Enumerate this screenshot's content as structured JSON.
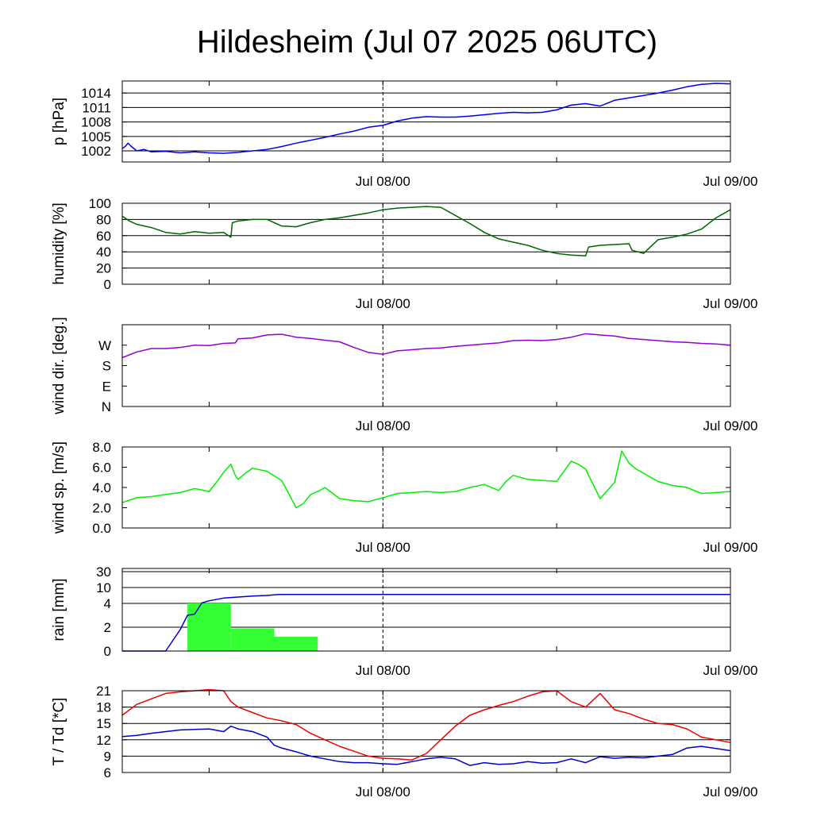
{
  "title": "Hildesheim (Jul 07 2025 06UTC)",
  "colors": {
    "pressure": "#0000ee",
    "humidity": "#006400",
    "wind_dir": "#9400d3",
    "wind_speed": "#00ee00",
    "rain_bar": "#33ff33",
    "rain_accum": "#0000cc",
    "temperature": "#ee0000",
    "dewpoint": "#0000cc",
    "grid": "#000000"
  },
  "chart_data": [
    {
      "type": "line",
      "ylabel": "p [hPa]",
      "x_tick_labels": [
        "Jul 08/00",
        "Jul 09/00"
      ],
      "ylim": [
        999.7,
        1016.5
      ],
      "yticks": [
        1002,
        1005,
        1008,
        1011,
        1014
      ],
      "grid": true,
      "series": [
        {
          "color_key": "pressure",
          "x": [
            0,
            0.2,
            0.4,
            0.6,
            0.8,
            1,
            1.5,
            2,
            3,
            4,
            5,
            6,
            7,
            8,
            9,
            10,
            11,
            12,
            13,
            14,
            15,
            16,
            17,
            18,
            19,
            20,
            21,
            22,
            23,
            24,
            25,
            26,
            27,
            28,
            29,
            30,
            31,
            32,
            33,
            34,
            35,
            36,
            37,
            38,
            39,
            40,
            41,
            42
          ],
          "values": [
            1002.5,
            1002.9,
            1003.6,
            1003.0,
            1002.5,
            1002.0,
            1002.3,
            1001.8,
            1001.9,
            1001.6,
            1001.8,
            1001.6,
            1001.5,
            1001.7,
            1002.0,
            1002.3,
            1002.9,
            1003.6,
            1004.2,
            1004.8,
            1005.5,
            1006.1,
            1006.9,
            1007.3,
            1008.2,
            1008.8,
            1009.1,
            1009.0,
            1009.0,
            1009.2,
            1009.5,
            1009.8,
            1010.0,
            1009.9,
            1010.0,
            1010.5,
            1011.5,
            1011.8,
            1011.3,
            1012.5,
            1013.0,
            1013.5,
            1014.0,
            1014.6,
            1015.3,
            1015.8,
            1016.0,
            1015.9
          ]
        }
      ]
    },
    {
      "type": "line",
      "ylabel": "humidity [%]",
      "x_tick_labels": [
        "Jul 08/00",
        "Jul 09/00"
      ],
      "ylim": [
        0,
        100
      ],
      "yticks": [
        0,
        20,
        40,
        60,
        80,
        100
      ],
      "grid": true,
      "series": [
        {
          "color_key": "humidity",
          "x": [
            0,
            0.5,
            1,
            2,
            3,
            4,
            5,
            6,
            7,
            7.5,
            7.6,
            8,
            9,
            10,
            11,
            12,
            13,
            14,
            15,
            16,
            17,
            18,
            19,
            20,
            21,
            22,
            23,
            24,
            25,
            26,
            27,
            28,
            29,
            30,
            31,
            32,
            32.2,
            33,
            34,
            35,
            35.2,
            36,
            37,
            38,
            39,
            40,
            41,
            42
          ],
          "values": [
            84,
            78,
            74,
            70,
            64,
            62,
            65,
            63,
            64,
            58,
            76,
            78,
            80,
            80,
            72,
            71,
            76,
            80,
            82,
            85,
            88,
            92,
            94,
            95,
            96,
            95,
            85,
            75,
            64,
            56,
            52,
            48,
            42,
            38,
            36,
            35,
            46,
            48,
            49,
            50,
            42,
            38,
            55,
            58,
            62,
            68,
            82,
            92
          ]
        }
      ]
    },
    {
      "type": "line",
      "ylabel": "wind dir. [deg.]",
      "x_tick_labels": [
        "Jul 08/00",
        "Jul 09/00"
      ],
      "ylim": [
        0,
        360
      ],
      "yticks": [
        0,
        90,
        180,
        270
      ],
      "ytick_labels": [
        "N",
        "E",
        "S",
        "W"
      ],
      "grid": false,
      "series": [
        {
          "color_key": "wind_dir",
          "x": [
            0,
            1,
            2,
            3,
            4,
            5,
            6,
            7,
            7.8,
            8,
            9,
            10,
            11,
            12,
            13,
            14,
            15,
            16,
            17,
            18,
            19,
            20,
            21,
            22,
            23,
            24,
            25,
            26,
            27,
            28,
            29,
            30,
            31,
            32,
            33,
            34,
            35,
            36,
            37,
            38,
            39,
            40,
            41,
            42
          ],
          "values": [
            215,
            240,
            255,
            255,
            260,
            270,
            268,
            278,
            280,
            298,
            302,
            315,
            318,
            305,
            300,
            292,
            285,
            260,
            238,
            230,
            245,
            250,
            255,
            258,
            265,
            270,
            275,
            280,
            290,
            292,
            290,
            295,
            305,
            320,
            315,
            310,
            300,
            295,
            290,
            285,
            282,
            278,
            275,
            270
          ]
        }
      ]
    },
    {
      "type": "line",
      "ylabel": "wind sp. [m/s]",
      "x_tick_labels": [
        "Jul 08/00",
        "Jul 09/00"
      ],
      "ylim": [
        0,
        8
      ],
      "yticks": [
        0.0,
        2.0,
        4.0,
        6.0,
        8.0
      ],
      "ytick_labels": [
        "0.0",
        "2.0",
        "4.0",
        "6.0",
        "8.0"
      ],
      "grid": false,
      "series": [
        {
          "color_key": "wind_speed",
          "x": [
            0,
            1,
            2,
            3,
            4,
            5,
            6,
            6.5,
            7,
            7.5,
            7.8,
            8,
            8.5,
            9,
            10,
            11,
            11.5,
            12,
            12.5,
            13,
            13.5,
            14,
            15,
            16,
            17,
            18,
            19,
            20,
            21,
            22,
            23,
            24,
            25,
            26,
            26.5,
            27,
            28,
            29,
            30,
            31,
            31.5,
            32,
            33,
            34,
            34.5,
            35,
            35.5,
            36,
            36.5,
            37,
            38,
            39,
            40,
            41,
            42
          ],
          "values": [
            2.5,
            3.0,
            3.1,
            3.3,
            3.5,
            3.9,
            3.6,
            4.5,
            5.5,
            6.3,
            5.2,
            4.8,
            5.4,
            5.9,
            5.6,
            4.7,
            3.4,
            2.0,
            2.4,
            3.3,
            3.6,
            4.0,
            2.9,
            2.7,
            2.6,
            3.0,
            3.4,
            3.5,
            3.6,
            3.5,
            3.6,
            4.0,
            4.3,
            3.7,
            4.6,
            5.2,
            4.8,
            4.7,
            4.6,
            6.6,
            6.3,
            5.8,
            2.9,
            4.5,
            7.6,
            6.4,
            5.8,
            5.4,
            5.0,
            4.6,
            4.2,
            4.0,
            3.4,
            3.5,
            3.6
          ]
        }
      ]
    },
    {
      "type": "bar",
      "ylabel": "rain [mm]",
      "x_tick_labels": [
        "Jul 08/00",
        "Jul 09/00"
      ],
      "yticks": [
        0,
        2,
        4,
        10,
        30
      ],
      "ytick_labels": [
        "0",
        "2",
        "4",
        "10",
        "30"
      ],
      "scale": "nonlinear",
      "grid": true,
      "bars": [
        {
          "x0": 4.5,
          "x1": 7.5,
          "value": 4.0
        },
        {
          "x0": 7.5,
          "x1": 10.5,
          "value": 1.9
        },
        {
          "x0": 10.5,
          "x1": 13.5,
          "value": 1.2
        }
      ],
      "accumulation": {
        "color_key": "rain_accum",
        "x": [
          0,
          3,
          4,
          4.5,
          5,
          5.5,
          6,
          7,
          8,
          9,
          10,
          10.6,
          11,
          42
        ],
        "values": [
          0,
          0,
          1.8,
          3.0,
          3.1,
          4.2,
          5.0,
          6.0,
          6.4,
          6.8,
          7.0,
          7.3,
          7.4,
          7.4
        ]
      }
    },
    {
      "type": "line",
      "ylabel": "T / Td [*C]",
      "x_tick_labels": [
        "Jul 08/00",
        "Jul 09/00"
      ],
      "ylim": [
        6,
        21
      ],
      "yticks": [
        6,
        9,
        12,
        15,
        18,
        21
      ],
      "grid": true,
      "series": [
        {
          "color_key": "temperature",
          "x": [
            0,
            1,
            2,
            3,
            4,
            5,
            6,
            7,
            7.5,
            8,
            9,
            10,
            11,
            12,
            13,
            14,
            15,
            16,
            17,
            18,
            19,
            20,
            21,
            22,
            23,
            24,
            25,
            26,
            27,
            28,
            29,
            30,
            31,
            32,
            33,
            34,
            35,
            36,
            37,
            38,
            39,
            40,
            41,
            42
          ],
          "values": [
            16.5,
            18.5,
            19.5,
            20.5,
            20.8,
            21.0,
            21.2,
            21.0,
            19.0,
            18.0,
            17.0,
            16.0,
            15.5,
            14.8,
            13.2,
            12.0,
            10.8,
            9.9,
            9.0,
            8.6,
            8.5,
            8.3,
            9.5,
            12.0,
            14.5,
            16.5,
            17.5,
            18.3,
            19.0,
            20.0,
            20.8,
            21.0,
            19.0,
            18.0,
            20.5,
            17.5,
            16.8,
            15.8,
            15.0,
            14.8,
            14.0,
            12.5,
            12.0,
            11.5
          ]
        },
        {
          "color_key": "dewpoint",
          "x": [
            0,
            1,
            2,
            3,
            4,
            5,
            6,
            7,
            7.5,
            8,
            9,
            10,
            10.5,
            11,
            12,
            13,
            14,
            15,
            16,
            17,
            18,
            19,
            20,
            21,
            22,
            23,
            24,
            25,
            26,
            27,
            28,
            29,
            30,
            31,
            32,
            33,
            34,
            35,
            36,
            37,
            38,
            39,
            40,
            41,
            42
          ],
          "values": [
            12.6,
            12.8,
            13.2,
            13.5,
            13.8,
            13.9,
            14.0,
            13.5,
            14.5,
            14.0,
            13.5,
            12.5,
            11.0,
            10.5,
            9.8,
            9.0,
            8.5,
            8.0,
            7.8,
            7.8,
            7.6,
            7.5,
            8.0,
            8.5,
            8.8,
            8.5,
            7.3,
            7.8,
            7.5,
            7.6,
            8.0,
            7.7,
            7.8,
            8.5,
            7.8,
            8.9,
            8.6,
            8.8,
            8.7,
            9.0,
            9.3,
            10.5,
            10.8,
            10.4,
            10.0
          ]
        }
      ]
    }
  ]
}
